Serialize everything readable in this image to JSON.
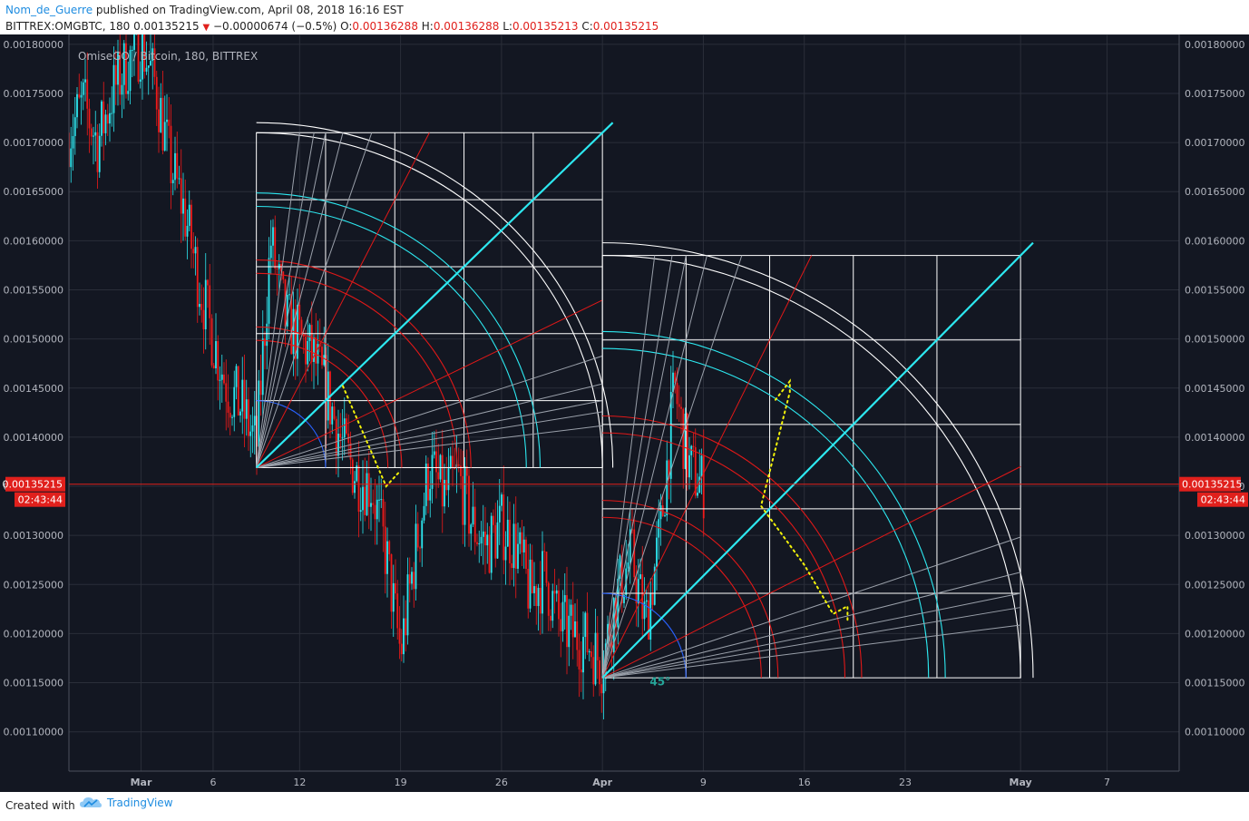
{
  "header": {
    "author": "Nom_de_Guerre",
    "published_text": "published on TradingView.com, April 08, 2018 16:16 EST",
    "symbol": "BITTREX:OMGBTC, 180",
    "last_price": "0.00135215",
    "change": "−0.00000674 (−0.5%)",
    "o_label": "O:",
    "o_value": "0.00136288",
    "h_label": "H:",
    "h_value": "0.00136288",
    "l_label": "L:",
    "l_value": "0.00135213",
    "c_label": "C:",
    "c_value": "0.00135215"
  },
  "footer": {
    "created_with": "Created with",
    "brand": "TradingView",
    "brand_icon": "tradingview-cloud-icon"
  },
  "colors": {
    "background": "#131722",
    "grid": "#2a2e39",
    "text": "#b2b5be",
    "up_candle": "#2de8f0",
    "down_candle": "#ef1a1a",
    "gann_white": "#ffffff",
    "gann_cyan": "#2de8f0",
    "gann_red": "#e01818",
    "gann_blue": "#2962ff",
    "path_yellow": "#f2f20a",
    "angle_label": "#26a69a",
    "price_badge": "#e0201c"
  },
  "chart_data": {
    "type": "candlestick",
    "title": "OmiseGO / Bitcoin, 180, BITTREX",
    "ylim": [
      0.00106,
      0.00181
    ],
    "y_ticks": [
      "0.00110000",
      "0.00115000",
      "0.00120000",
      "0.00125000",
      "0.00130000",
      "0.00135000",
      "0.00140000",
      "0.00145000",
      "0.00150000",
      "0.00155000",
      "0.00160000",
      "0.00165000",
      "0.00170000",
      "0.00175000",
      "0.00180000"
    ],
    "x_range_days": [
      "2018-02-24",
      "2018-05-12"
    ],
    "x_ticks": [
      {
        "label": "Mar",
        "date": "2018-03-01"
      },
      {
        "label": "6",
        "date": "2018-03-06"
      },
      {
        "label": "12",
        "date": "2018-03-12"
      },
      {
        "label": "19",
        "date": "2018-03-19"
      },
      {
        "label": "26",
        "date": "2018-03-26"
      },
      {
        "label": "Apr",
        "date": "2018-04-02"
      },
      {
        "label": "9",
        "date": "2018-04-09"
      },
      {
        "label": "16",
        "date": "2018-04-16"
      },
      {
        "label": "23",
        "date": "2018-04-23"
      },
      {
        "label": "May",
        "date": "2018-05-01"
      },
      {
        "label": "7",
        "date": "2018-05-07"
      }
    ],
    "last_price": 0.00135215,
    "last_price_label": "0.00135215",
    "countdown_label": "02:43:44",
    "price_path": [
      [
        "2018-02-24",
        0.00171
      ],
      [
        "2018-02-25",
        0.00174
      ],
      [
        "2018-02-26",
        0.0017
      ],
      [
        "2018-02-27",
        0.00175
      ],
      [
        "2018-02-28",
        0.00178
      ],
      [
        "2018-03-01",
        0.0018
      ],
      [
        "2018-03-02",
        0.00176
      ],
      [
        "2018-03-03",
        0.00168
      ],
      [
        "2018-03-04",
        0.00163
      ],
      [
        "2018-03-05",
        0.00156
      ],
      [
        "2018-03-06",
        0.0015
      ],
      [
        "2018-03-07",
        0.00145
      ],
      [
        "2018-03-08",
        0.00143
      ],
      [
        "2018-03-09",
        0.00139
      ],
      [
        "2018-03-10",
        0.0016
      ],
      [
        "2018-03-11",
        0.00152
      ],
      [
        "2018-03-12",
        0.0015
      ],
      [
        "2018-03-13",
        0.00148
      ],
      [
        "2018-03-14",
        0.00144
      ],
      [
        "2018-03-15",
        0.00139
      ],
      [
        "2018-03-16",
        0.00136
      ],
      [
        "2018-03-17",
        0.00135
      ],
      [
        "2018-03-18",
        0.00128
      ],
      [
        "2018-03-19",
        0.00118
      ],
      [
        "2018-03-20",
        0.00128
      ],
      [
        "2018-03-21",
        0.00137
      ],
      [
        "2018-03-22",
        0.00134
      ],
      [
        "2018-03-23",
        0.00136
      ],
      [
        "2018-03-24",
        0.00131
      ],
      [
        "2018-03-25",
        0.00129
      ],
      [
        "2018-03-26",
        0.00131
      ],
      [
        "2018-03-27",
        0.00129
      ],
      [
        "2018-03-28",
        0.00124
      ],
      [
        "2018-03-29",
        0.00126
      ],
      [
        "2018-03-30",
        0.00121
      ],
      [
        "2018-03-31",
        0.0012
      ],
      [
        "2018-04-01",
        0.00119
      ],
      [
        "2018-04-02",
        0.00117
      ],
      [
        "2018-04-03",
        0.00124
      ],
      [
        "2018-04-04",
        0.00128
      ],
      [
        "2018-04-05",
        0.00121
      ],
      [
        "2018-04-06",
        0.0013
      ],
      [
        "2018-04-07",
        0.00145
      ],
      [
        "2018-04-08",
        0.00137
      ],
      [
        "2018-04-09",
        0.00135
      ]
    ],
    "gann_boxes": [
      {
        "origin_date": "2018-03-09",
        "origin_price": 0.001369,
        "end_date": "2018-04-02",
        "end_price": 0.00171,
        "divisions": 5
      },
      {
        "origin_date": "2018-04-02",
        "origin_price": 0.001155,
        "end_date": "2018-05-01",
        "end_price": 0.001585,
        "divisions": 5
      }
    ],
    "yellow_paths": [
      [
        [
          "2018-03-15",
          0.001452
        ],
        [
          "2018-03-18",
          0.00135
        ],
        [
          "2018-03-19",
          0.001366
        ]
      ],
      [
        [
          "2018-04-14",
          0.001438
        ],
        [
          "2018-04-15",
          0.001457
        ],
        [
          "2018-04-15",
          0.001446
        ],
        [
          "2018-04-13",
          0.00133
        ],
        [
          "2018-04-16",
          0.00127
        ],
        [
          "2018-04-18",
          0.00122
        ],
        [
          "2018-04-19",
          0.001228
        ],
        [
          "2018-04-19",
          0.001213
        ]
      ]
    ],
    "annotations": [
      {
        "text": "45°",
        "date": "2018-04-06",
        "price": 0.001153
      }
    ]
  }
}
